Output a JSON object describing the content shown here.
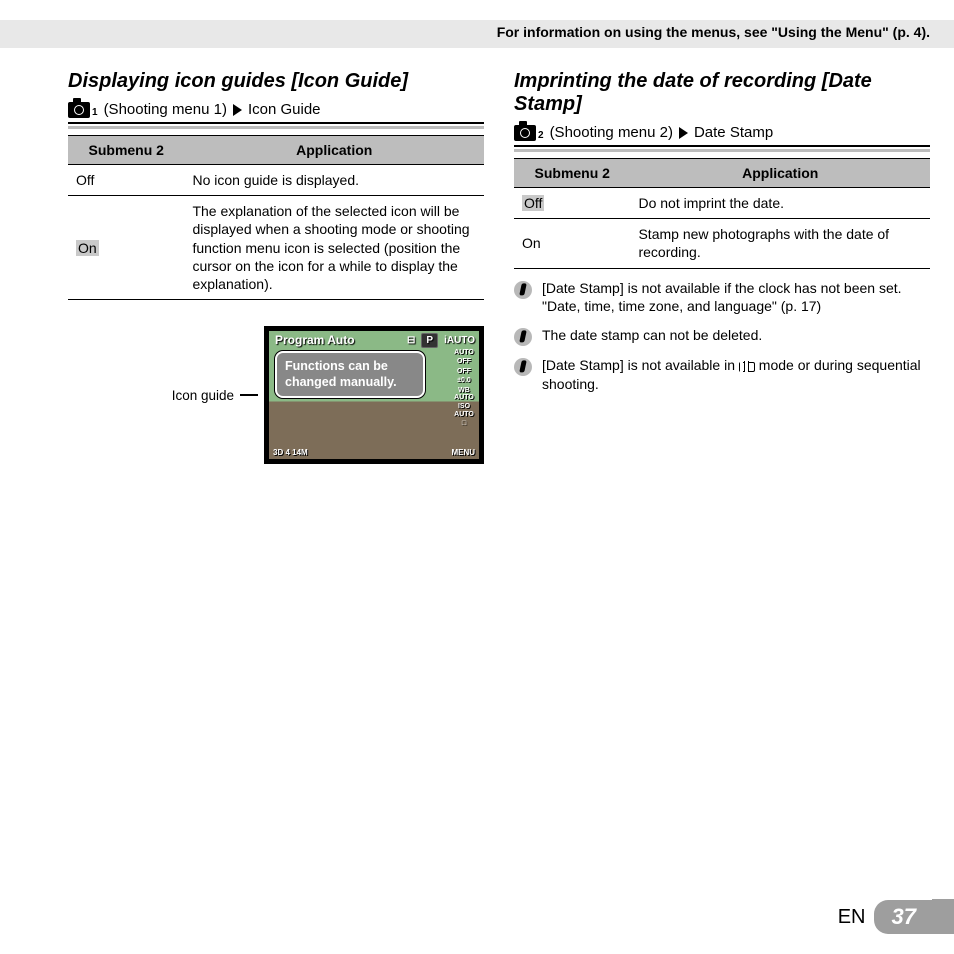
{
  "header_note": "For information on using the menus, see \"Using the Menu\" (p. 4).",
  "left": {
    "title": "Displaying icon guides [Icon Guide]",
    "crumb_menu": "(Shooting menu 1)",
    "crumb_item": "Icon Guide",
    "cam_sub": "1",
    "table": {
      "head_sub": "Submenu 2",
      "head_app": "Application",
      "rows": [
        {
          "sub": "Off",
          "app": "No icon guide is displayed."
        },
        {
          "sub": "On",
          "app": "The explanation of the selected icon will be displayed when a shooting mode or shooting function menu icon is selected (position the cursor on the icon for a while to display the explanation)."
        }
      ]
    },
    "figure_label": "Icon guide",
    "lcd": {
      "title": "Program Auto",
      "p": "P",
      "iauto": "iAUTO",
      "tooltip": "Functions can be changed manually.",
      "side": [
        "AUTO",
        "OFF",
        "OFF",
        "±0.0",
        "WB\nAUTO",
        "ISO\nAUTO",
        "□"
      ],
      "bottom_left": "3D 4 14M",
      "bottom_right": "MENU"
    }
  },
  "right": {
    "title": "Imprinting the date of recording [Date Stamp]",
    "crumb_menu": "(Shooting menu 2)",
    "crumb_item": "Date Stamp",
    "cam_sub": "2",
    "table": {
      "head_sub": "Submenu 2",
      "head_app": "Application",
      "rows": [
        {
          "sub": "Off",
          "app": "Do not imprint the date."
        },
        {
          "sub": "On",
          "app": "Stamp new photographs with the date of recording."
        }
      ]
    },
    "notes": [
      "[Date Stamp] is not available if the clock has not been set.\n\"Date, time, time zone, and language\" (p. 17)",
      "The date stamp can not be deleted.",
      "[Date Stamp] is not available in {PANO} mode or during sequential shooting."
    ]
  },
  "footer": {
    "lang": "EN",
    "page": "37"
  }
}
